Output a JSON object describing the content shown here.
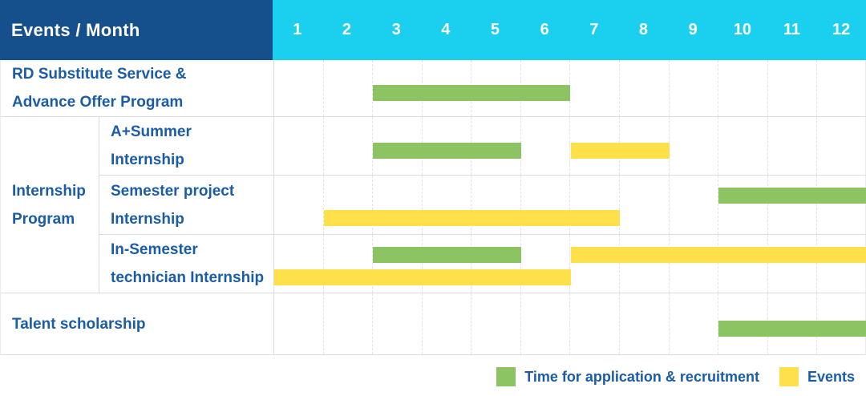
{
  "header": {
    "corner_label": "Events / Month",
    "months": [
      "1",
      "2",
      "3",
      "4",
      "5",
      "6",
      "7",
      "8",
      "9",
      "10",
      "11",
      "12"
    ]
  },
  "colors": {
    "navy": "#15508d",
    "cyan": "#1bd0ee",
    "green": "#8dc463",
    "yellow": "#fde04a",
    "label_text": "#1b5ca6"
  },
  "group": {
    "label_lines": [
      "Internship",
      "Program"
    ]
  },
  "rows": [
    {
      "id": "rd-substitute-service",
      "label_lines": [
        "RD Substitute Service &",
        "Advance Offer Program"
      ],
      "full_width_label": true,
      "bars": [
        {
          "color": "green",
          "start_month": 3,
          "end_month": 6,
          "lane": "mid"
        }
      ]
    },
    {
      "id": "a-plus-summer-internship",
      "label_lines": [
        "A+Summer",
        "Internship"
      ],
      "full_width_label": false,
      "bars": [
        {
          "color": "green",
          "start_month": 3,
          "end_month": 5,
          "lane": "mid"
        },
        {
          "color": "yellow",
          "start_month": 7,
          "end_month": 8,
          "lane": "mid"
        }
      ]
    },
    {
      "id": "semester-project-internship",
      "label_lines": [
        "Semester project",
        "Internship"
      ],
      "full_width_label": false,
      "bars": [
        {
          "color": "green",
          "start_month": 10,
          "end_month": 12,
          "lane": "top"
        },
        {
          "color": "yellow",
          "start_month": 2,
          "end_month": 7,
          "lane": "bottom"
        }
      ]
    },
    {
      "id": "in-semester-technician-internship",
      "label_lines": [
        "In-Semester",
        "technician Internship"
      ],
      "full_width_label": false,
      "bars": [
        {
          "color": "green",
          "start_month": 3,
          "end_month": 5,
          "lane": "top"
        },
        {
          "color": "yellow",
          "start_month": 7,
          "end_month": 12,
          "lane": "top"
        },
        {
          "color": "yellow",
          "start_month": 1,
          "end_month": 6,
          "lane": "bottom"
        }
      ]
    },
    {
      "id": "talent-scholarship",
      "label_lines": [
        "Talent scholarship"
      ],
      "full_width_label": true,
      "bars": [
        {
          "color": "green",
          "start_month": 10,
          "end_month": 12,
          "lane": "mid"
        }
      ]
    }
  ],
  "legend": [
    {
      "color": "green",
      "label": "Time for application & recruitment"
    },
    {
      "color": "yellow",
      "label": "Events"
    }
  ],
  "chart_data": {
    "type": "table",
    "title": "Events / Month",
    "xlabel": "Month",
    "x_ticks": [
      "1",
      "2",
      "3",
      "4",
      "5",
      "6",
      "7",
      "8",
      "9",
      "10",
      "11",
      "12"
    ],
    "legend": {
      "green": "Time for application & recruitment",
      "yellow": "Events"
    },
    "legend_position": "bottom-right",
    "grid": true,
    "rows": [
      {
        "event": "RD Substitute Service & Advance Offer Program",
        "group": null,
        "spans": [
          {
            "category": "Time for application & recruitment",
            "months": [
              3,
              6
            ]
          }
        ]
      },
      {
        "event": "A+Summer Internship",
        "group": "Internship Program",
        "spans": [
          {
            "category": "Time for application & recruitment",
            "months": [
              3,
              5
            ]
          },
          {
            "category": "Events",
            "months": [
              7,
              8
            ]
          }
        ]
      },
      {
        "event": "Semester project Internship",
        "group": "Internship Program",
        "spans": [
          {
            "category": "Time for application & recruitment",
            "months": [
              10,
              12
            ]
          },
          {
            "category": "Events",
            "months": [
              2,
              7
            ]
          }
        ]
      },
      {
        "event": "In-Semester technician Internship",
        "group": "Internship Program",
        "spans": [
          {
            "category": "Time for application & recruitment",
            "months": [
              3,
              5
            ]
          },
          {
            "category": "Events",
            "months": [
              7,
              12
            ]
          },
          {
            "category": "Events",
            "months": [
              1,
              6
            ]
          }
        ]
      },
      {
        "event": "Talent scholarship",
        "group": null,
        "spans": [
          {
            "category": "Time for application & recruitment",
            "months": [
              10,
              12
            ]
          }
        ]
      }
    ]
  }
}
